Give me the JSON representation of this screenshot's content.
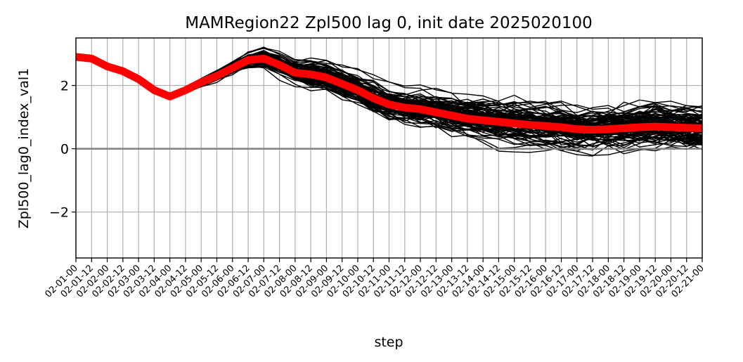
{
  "chart_data": {
    "type": "line",
    "title": "MAMRegion22 Zpl500 lag 0, init date 2025020100",
    "xlabel": "step",
    "ylabel": "Zpl500_lag0_index_val1",
    "ylim": [
      -3.45,
      3.5
    ],
    "yticks": [
      -2,
      0,
      2
    ],
    "ytick_labels": [
      "−2",
      "0",
      "2"
    ],
    "grid": true,
    "zero_line": 0,
    "x": [
      "02-01-00",
      "02-01-12",
      "02-02-00",
      "02-02-12",
      "02-03-00",
      "02-03-12",
      "02-04-00",
      "02-04-12",
      "02-05-00",
      "02-05-12",
      "02-06-00",
      "02-06-12",
      "02-07-00",
      "02-07-12",
      "02-08-00",
      "02-08-12",
      "02-09-00",
      "02-09-12",
      "02-10-00",
      "02-10-12",
      "02-11-00",
      "02-11-12",
      "02-12-00",
      "02-12-12",
      "02-13-00",
      "02-13-12",
      "02-14-00",
      "02-14-12",
      "02-15-00",
      "02-15-12",
      "02-16-00",
      "02-16-12",
      "02-17-00",
      "02-17-12",
      "02-18-00",
      "02-18-12",
      "02-19-00",
      "02-19-12",
      "02-20-00",
      "02-20-12",
      "02-21-00"
    ],
    "ensemble_mean": [
      2.9,
      2.85,
      2.6,
      2.45,
      2.2,
      1.85,
      1.65,
      1.85,
      2.1,
      2.3,
      2.55,
      2.8,
      2.85,
      2.65,
      2.4,
      2.35,
      2.25,
      2.05,
      1.85,
      1.6,
      1.4,
      1.3,
      1.25,
      1.15,
      1.05,
      0.95,
      0.9,
      0.85,
      0.8,
      0.75,
      0.72,
      0.68,
      0.62,
      0.6,
      0.62,
      0.65,
      0.68,
      0.7,
      0.68,
      0.66,
      0.65
    ],
    "ensemble_members": 100,
    "colors": {
      "members": "#000000",
      "mean": "#ff0000",
      "grid": "#b0b0b0",
      "zero": "#808080"
    }
  }
}
